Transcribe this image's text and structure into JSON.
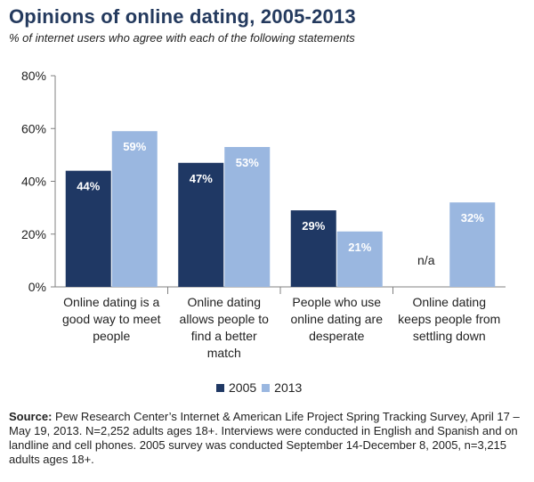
{
  "title": "Opinions of online dating, 2005-2013",
  "subtitle": "% of internet users who agree with each of the following statements",
  "colors": {
    "y2005": "#1f3864",
    "y2013": "#9ab7e0",
    "axis": "#808080",
    "label_dark": "#ffffff",
    "label_light": "#ffffff"
  },
  "chart_data": {
    "type": "bar",
    "title": "Opinions of online dating, 2005-2013",
    "ylabel": "",
    "xlabel": "",
    "ylim": [
      0,
      80
    ],
    "yticks": [
      "0%",
      "20%",
      "40%",
      "60%",
      "80%"
    ],
    "ytick_values": [
      0,
      20,
      40,
      60,
      80
    ],
    "categories": [
      [
        "Online dating is a",
        "good way to meet",
        "people"
      ],
      [
        "Online dating",
        "allows people to",
        "find a better",
        "match"
      ],
      [
        "People who use",
        "online dating are",
        "desperate"
      ],
      [
        "Online dating",
        "keeps people from",
        "settling down"
      ]
    ],
    "series": [
      {
        "name": "2005",
        "values": [
          44,
          47,
          29,
          null
        ],
        "labels": [
          "44%",
          "47%",
          "29%",
          "n/a"
        ]
      },
      {
        "name": "2013",
        "values": [
          59,
          53,
          21,
          32
        ],
        "labels": [
          "59%",
          "53%",
          "21%",
          "32%"
        ]
      }
    ],
    "legend": [
      "2005",
      "2013"
    ]
  },
  "source": {
    "label": "Source:",
    "text": "Pew Research Center’s Internet & American Life Project Spring Tracking Survey, April 17 – May 19, 2013. N=2,252 adults ages 18+. Interviews were conducted in English and Spanish and on landline and cell phones.  2005 survey was conducted September 14-December 8, 2005, n=3,215 adults ages 18+."
  }
}
